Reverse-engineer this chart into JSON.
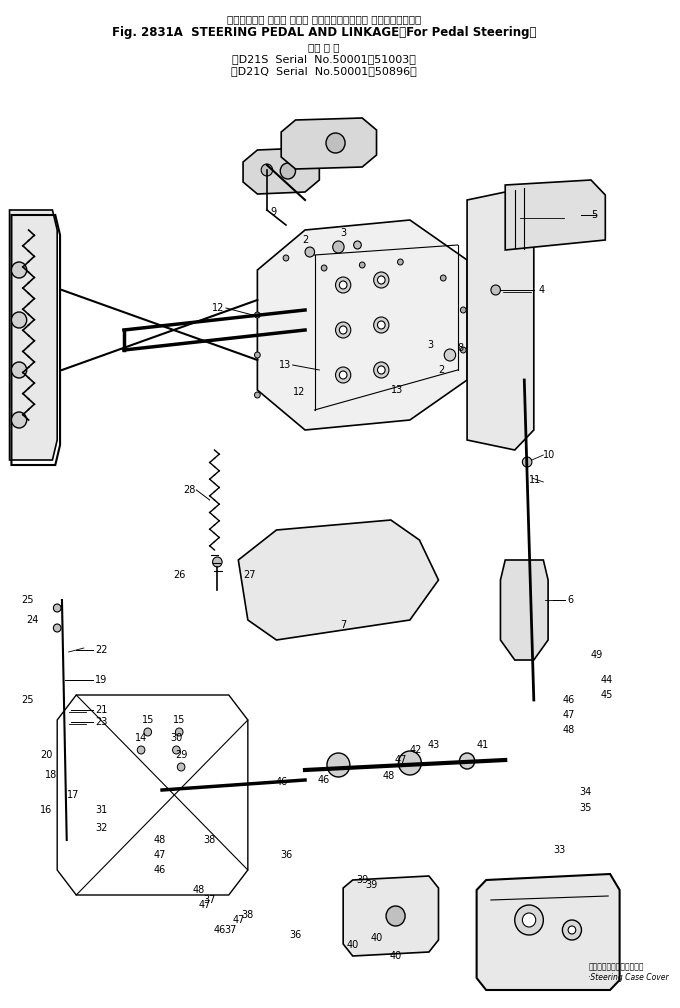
{
  "title_line1_jp": "ステアリング ペダル および リンケージ（ペダル ステアリング用）",
  "title_line1_en": "Fig. 2831A  STEERING PEDAL AND LINKAGE（For Pedal Steering）",
  "title_line2_jp": "適用 号 機",
  "title_line2_en1": "（D21S  Serial  No.50001～51003）",
  "title_line2_en2": "（D21Q  Serial  No.50001～50896）",
  "bg_color": "#ffffff",
  "line_color": "#000000",
  "fig_width": 6.8,
  "fig_height": 10.08,
  "dpi": 100
}
